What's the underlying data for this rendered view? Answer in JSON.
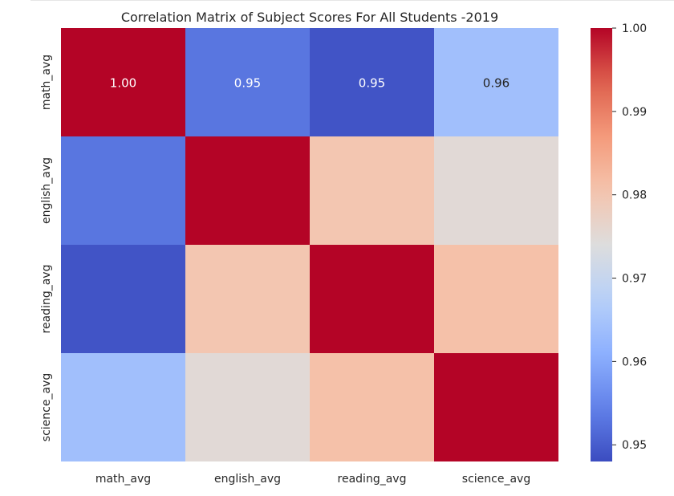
{
  "chart_data": {
    "type": "heatmap",
    "title": "Correlation Matrix of Subject Scores For All Students -2019",
    "xlabel": "",
    "ylabel": "",
    "x_labels": [
      "math_avg",
      "english_avg",
      "reading_avg",
      "science_avg"
    ],
    "y_labels": [
      "math_avg",
      "english_avg",
      "reading_avg",
      "science_avg"
    ],
    "matrix": [
      [
        1.0,
        0.953,
        0.949,
        0.964
      ],
      [
        0.953,
        1.0,
        0.98,
        0.975
      ],
      [
        0.949,
        0.98,
        1.0,
        0.981
      ],
      [
        0.964,
        0.975,
        0.981,
        1.0
      ]
    ],
    "annotations": [
      {
        "row": 0,
        "col": 0,
        "text": "1.00"
      },
      {
        "row": 0,
        "col": 1,
        "text": "0.95"
      },
      {
        "row": 0,
        "col": 2,
        "text": "0.95"
      },
      {
        "row": 0,
        "col": 3,
        "text": "0.96"
      }
    ],
    "colormap": "coolwarm",
    "colorbar": {
      "vmin": 0.948,
      "vmax": 1.0,
      "ticks": [
        0.95,
        0.96,
        0.97,
        0.98,
        0.99,
        1.0
      ],
      "tick_labels": [
        "0.95",
        "0.96",
        "0.97",
        "0.98",
        "0.99",
        "1.00"
      ]
    }
  }
}
